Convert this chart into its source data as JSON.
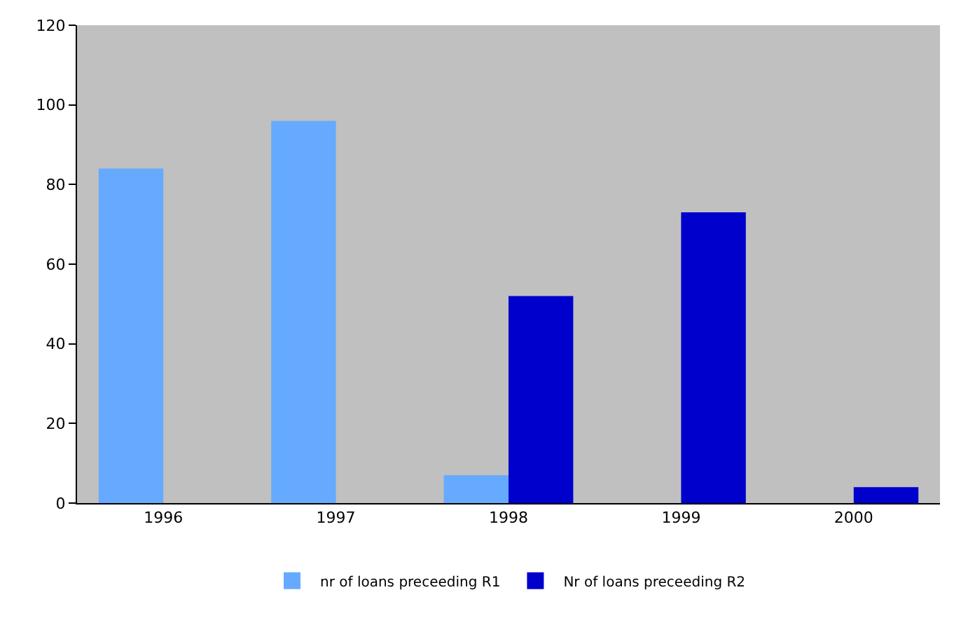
{
  "chart_data": {
    "type": "bar",
    "categories": [
      "1996",
      "1997",
      "1998",
      "1999",
      "2000"
    ],
    "series": [
      {
        "name": "nr of loans preceeding R1",
        "color": "#66aaff",
        "values": [
          84,
          96,
          7,
          null,
          null
        ]
      },
      {
        "name": "Nr of loans preceeding R2",
        "color": "#0000cc",
        "values": [
          null,
          null,
          52,
          73,
          4
        ]
      }
    ],
    "ylim": [
      0,
      120
    ],
    "yticks": [
      0,
      20,
      40,
      60,
      80,
      100,
      120
    ],
    "grid": false,
    "legend": "bottom"
  }
}
